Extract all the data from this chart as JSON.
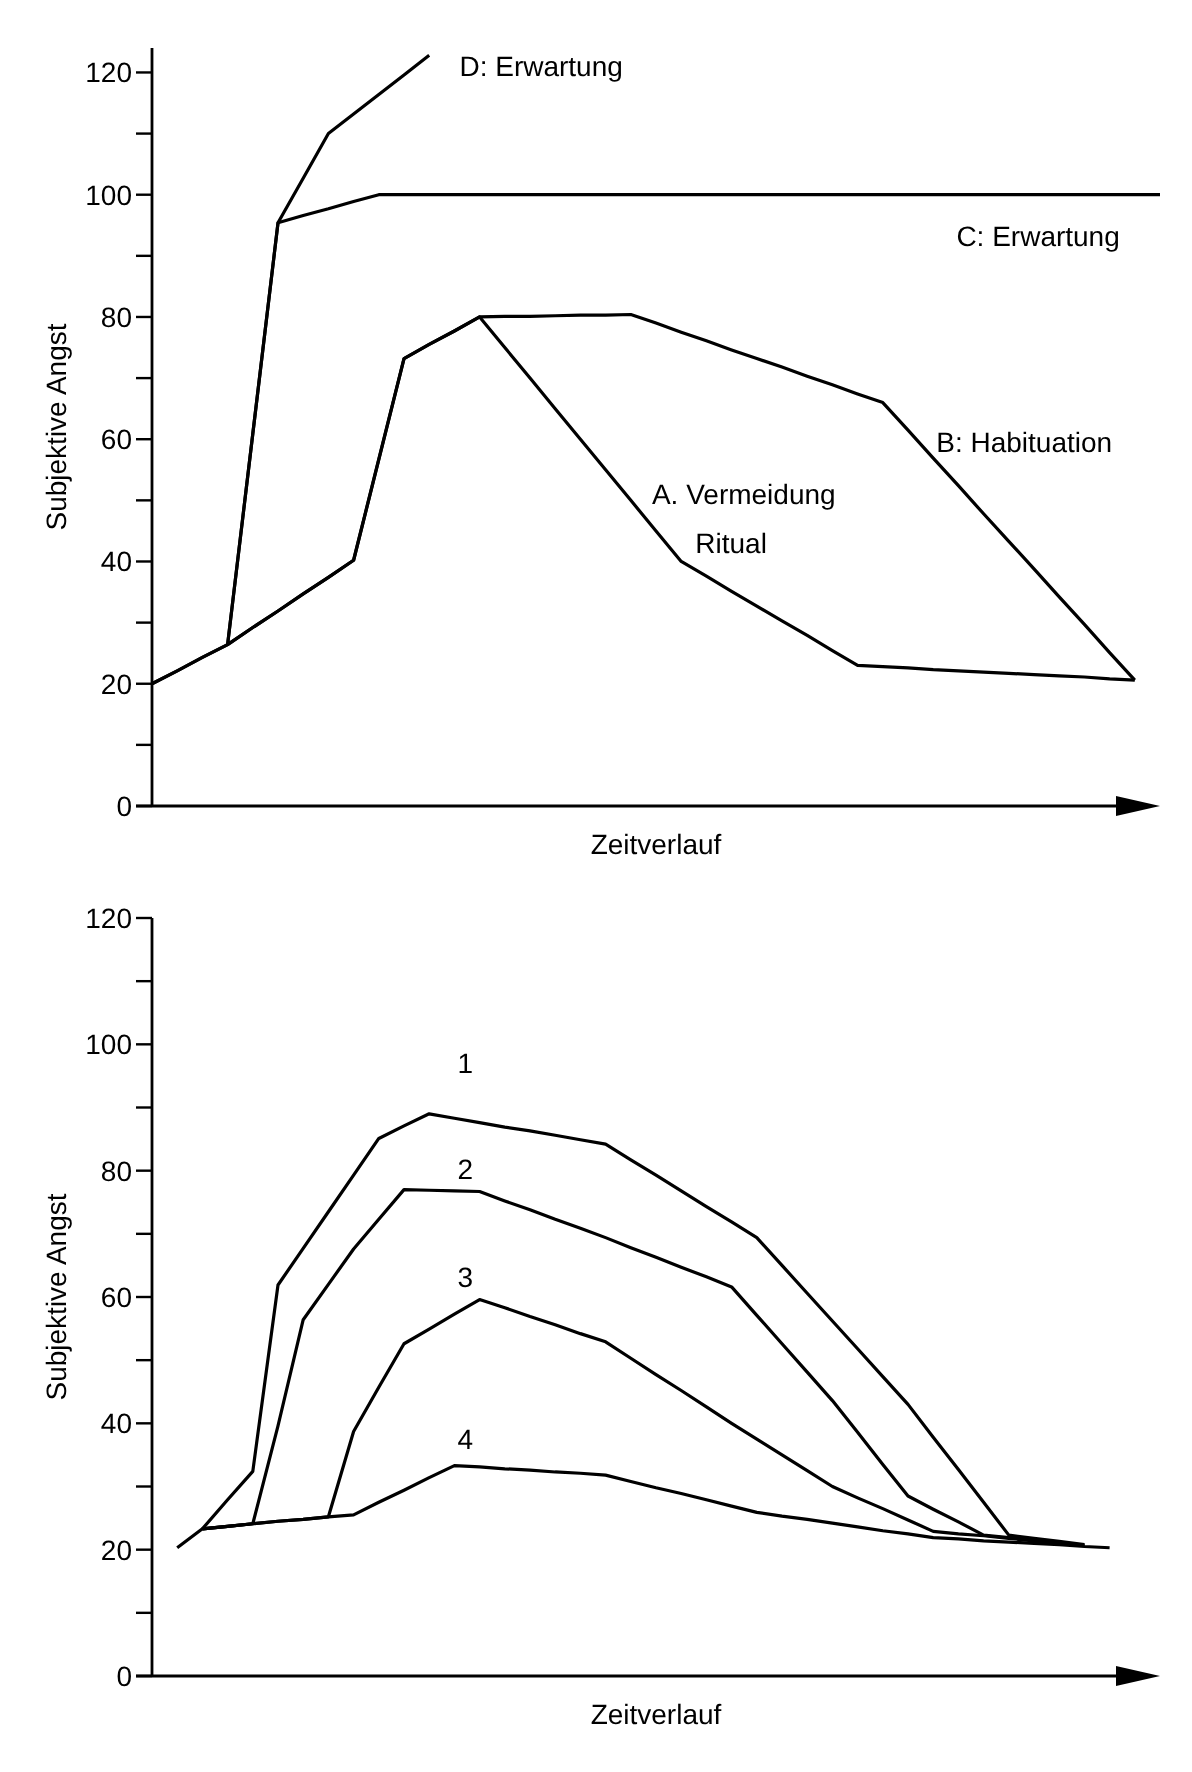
{
  "chart_data": [
    {
      "type": "line",
      "xlabel": "Zeitverlauf",
      "ylabel": "Subjektive Angst",
      "ylim": [
        0,
        124
      ],
      "tick_labels": "y",
      "marker": "none",
      "line_style": "solid",
      "categories": [
        null,
        null,
        null,
        null,
        null,
        null,
        null,
        null,
        null,
        null,
        null,
        null,
        null,
        null,
        null,
        null,
        null,
        null,
        null,
        null,
        null,
        null,
        null,
        null,
        null,
        null,
        null,
        null,
        null,
        null,
        null,
        null,
        null,
        null,
        null,
        null,
        null,
        null,
        null,
        null,
        null
      ],
      "yticks": [
        0,
        {
          "value": 10,
          "label": null
        },
        20,
        {
          "value": 30,
          "label": null
        },
        40,
        {
          "value": 50,
          "label": null
        },
        60,
        {
          "value": 70,
          "label": null
        },
        80,
        {
          "value": 90,
          "label": null
        },
        100,
        {
          "value": 110,
          "label": null
        },
        120
      ],
      "series": [
        {
          "color": "#000000",
          "values": [
            20,
            22.1,
            24.3,
            26.4,
            29.2,
            31.9,
            34.7,
            37.4,
            40.2,
            56.7,
            73.2,
            75.5,
            77.7,
            80,
            75,
            70,
            65,
            60,
            55,
            50,
            45,
            40,
            37.6,
            35.1,
            32.7,
            30.3,
            27.9,
            25.4,
            23,
            22.8,
            22.6,
            22.3,
            22.1,
            21.9,
            21.7,
            21.5,
            21.3,
            21.1,
            20.8,
            20.6,
            null
          ]
        },
        {
          "color": "#000000",
          "values": [
            20,
            22.1,
            24.3,
            26.4,
            29.2,
            31.9,
            34.7,
            37.4,
            40.2,
            56.7,
            73.2,
            75.5,
            77.7,
            80,
            80.1,
            80.1,
            80.2,
            80.3,
            80.3,
            80.4,
            79,
            77.5,
            76.1,
            74.6,
            73.2,
            71.8,
            70.3,
            68.9,
            67.4,
            66,
            61.5,
            56.9,
            52.4,
            47.8,
            43.3,
            38.8,
            34.2,
            29.7,
            25.1,
            20.6,
            null
          ]
        },
        {
          "color": "#000000",
          "values": [
            null,
            null,
            null,
            26.4,
            60.9,
            95.4,
            96.6,
            97.7,
            98.9,
            100,
            100,
            100,
            100,
            100,
            100,
            100,
            100,
            100,
            100,
            100,
            100,
            100,
            100,
            100,
            100,
            100,
            100,
            100,
            100,
            100,
            100,
            100,
            100,
            100,
            100,
            100,
            100,
            100,
            100,
            100,
            100
          ]
        },
        {
          "color": "#000000",
          "values": [
            null,
            null,
            null,
            26.4,
            60.9,
            95.4,
            102.7,
            110,
            113.2,
            116.4,
            119.6,
            122.8,
            null,
            null,
            null,
            null,
            null,
            null,
            null,
            null,
            null,
            null,
            null,
            null,
            null,
            null,
            null,
            null,
            null,
            null,
            null,
            null,
            null,
            null,
            null,
            null,
            null,
            null,
            null,
            null,
            null
          ]
        }
      ],
      "annotations": [
        "D: Erwartung",
        "C: Erwartung",
        "B: Habituation",
        "A. Vermeidung",
        "Ritual"
      ]
    },
    {
      "type": "line",
      "xlabel": "Zeitverlauf",
      "ylabel": "Subjektive Angst",
      "ylim": [
        0,
        120
      ],
      "tick_labels": "y",
      "marker": "none",
      "line_style": "solid",
      "categories": [
        null,
        null,
        null,
        null,
        null,
        null,
        null,
        null,
        null,
        null,
        null,
        null,
        null,
        null,
        null,
        null,
        null,
        null,
        null,
        null,
        null,
        null,
        null,
        null,
        null,
        null,
        null,
        null,
        null,
        null,
        null,
        null,
        null,
        null,
        null,
        null,
        null,
        null,
        null,
        null,
        null
      ],
      "yticks": [
        0,
        {
          "value": 10,
          "label": null
        },
        20,
        {
          "value": 30,
          "label": null
        },
        40,
        {
          "value": 50,
          "label": null
        },
        60,
        {
          "value": 70,
          "label": null
        },
        80,
        {
          "value": 90,
          "label": null
        },
        100,
        {
          "value": 110,
          "label": null
        },
        120
      ],
      "series": [
        {
          "color": "#000000",
          "values": [
            null,
            null,
            23.3,
            27.9,
            32.4,
            61.9,
            67.7,
            73.5,
            79.3,
            85.1,
            87.1,
            89,
            88.3,
            87.6,
            86.9,
            86.3,
            85.6,
            84.9,
            84.2,
            81.7,
            79.3,
            76.8,
            74.3,
            71.9,
            69.4,
            65,
            60.6,
            56.2,
            51.8,
            47.4,
            43,
            37.8,
            32.7,
            27.5,
            22.3,
            21.8,
            21.3,
            20.8,
            null,
            null,
            null
          ]
        },
        {
          "color": "#000000",
          "values": [
            null,
            null,
            23.3,
            23.7,
            24.1,
            39.6,
            56.4,
            62,
            67.6,
            72.3,
            77,
            76.9,
            76.8,
            76.7,
            75.2,
            73.8,
            72.3,
            70.9,
            69.4,
            67.8,
            66.3,
            64.7,
            63.2,
            61.6,
            57.1,
            52.6,
            48.1,
            43.6,
            38.6,
            33.5,
            28.5,
            26.4,
            24.4,
            22.3,
            21.9,
            21.5,
            21.1,
            20.7,
            null,
            null,
            null
          ]
        },
        {
          "color": "#000000",
          "values": [
            null,
            null,
            23.3,
            23.7,
            24.1,
            24.5,
            24.8,
            25.2,
            38.7,
            45.7,
            52.6,
            54.9,
            57.3,
            59.6,
            58.3,
            56.9,
            55.6,
            54.2,
            52.9,
            50.3,
            47.7,
            45.2,
            42.6,
            40,
            37.5,
            35,
            32.5,
            30,
            28.2,
            26.5,
            24.7,
            22.9,
            22.5,
            22.2,
            21.8,
            21.4,
            21.1,
            20.7,
            null,
            null,
            null
          ]
        },
        {
          "color": "#000000",
          "values": [
            null,
            20.3,
            23.3,
            23.7,
            24.1,
            24.5,
            24.8,
            25.2,
            25.5,
            27.5,
            29.4,
            31.4,
            33.3,
            33.1,
            32.8,
            32.6,
            32.3,
            32.1,
            31.8,
            30.8,
            29.8,
            28.9,
            27.9,
            26.9,
            25.9,
            25.3,
            24.8,
            24.2,
            23.6,
            23,
            22.5,
            21.9,
            21.7,
            21.4,
            21.2,
            21,
            20.8,
            20.5,
            20.3,
            null,
            null
          ]
        }
      ],
      "annotations": [
        "1",
        "2",
        "3",
        "4"
      ]
    }
  ]
}
